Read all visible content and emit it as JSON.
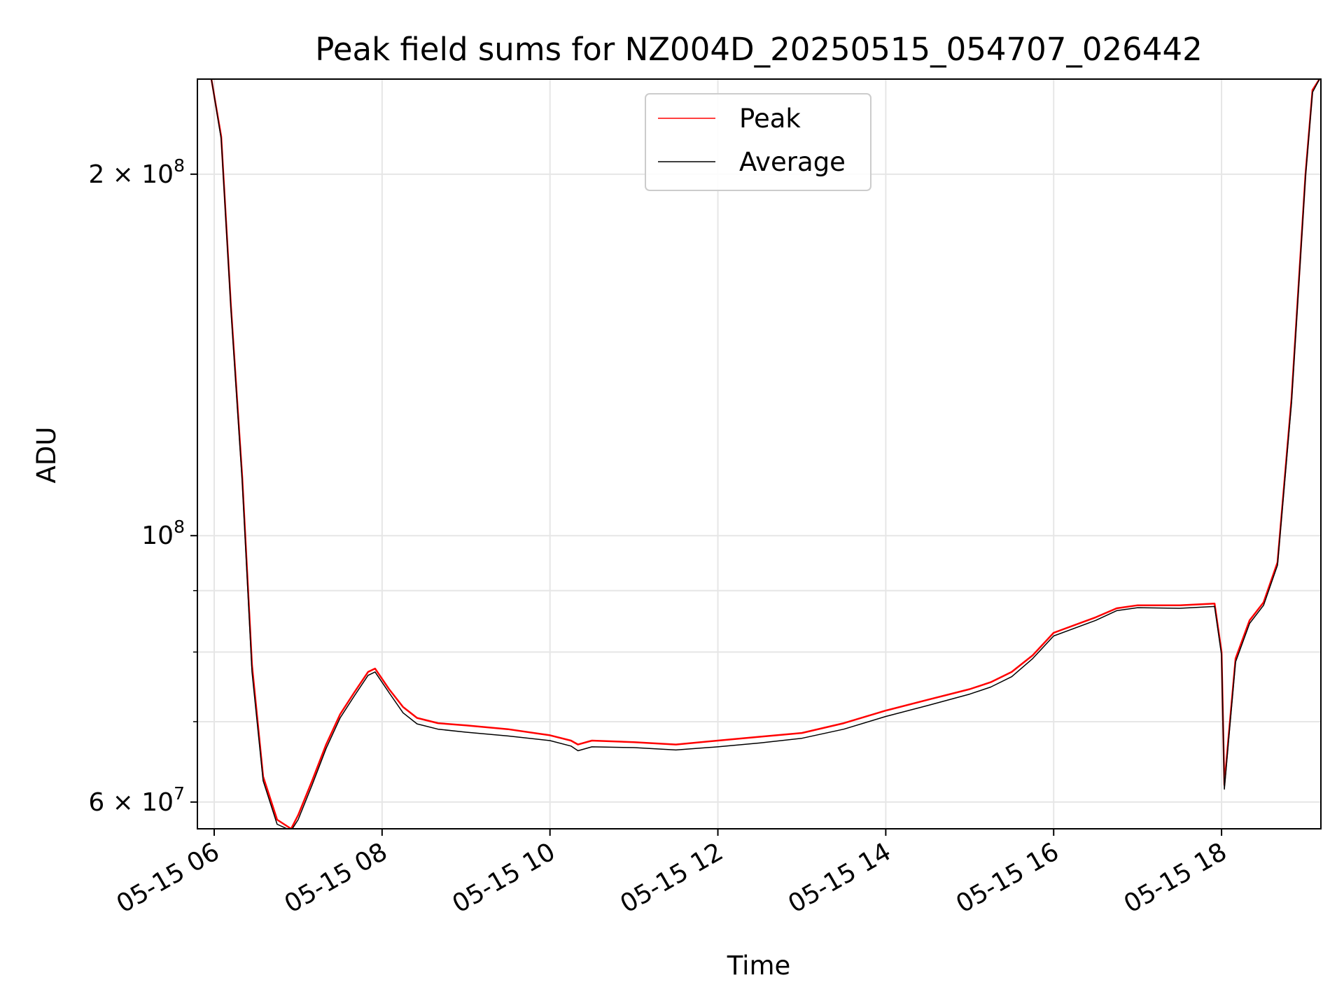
{
  "chart_data": {
    "type": "line",
    "title": "Peak field sums for NZ004D_20250515_054707_026442",
    "xlabel": "Time",
    "ylabel": "ADU",
    "yscale": "log",
    "grid": true,
    "legend_position": "top-center",
    "xlim": [
      "2025-05-15 05:48",
      "2025-05-15 19:11"
    ],
    "ylim": [
      57000000,
      240000000
    ],
    "x_ticks": [
      {
        "value": "2025-05-15 06:00",
        "label": "05-15 06"
      },
      {
        "value": "2025-05-15 08:00",
        "label": "05-15 08"
      },
      {
        "value": "2025-05-15 10:00",
        "label": "05-15 10"
      },
      {
        "value": "2025-05-15 12:00",
        "label": "05-15 12"
      },
      {
        "value": "2025-05-15 14:00",
        "label": "05-15 14"
      },
      {
        "value": "2025-05-15 16:00",
        "label": "05-15 16"
      },
      {
        "value": "2025-05-15 18:00",
        "label": "05-15 18"
      }
    ],
    "y_ticks_major": [
      {
        "value": 60000000,
        "mantissa": "6",
        "base": "10",
        "exp": "7"
      },
      {
        "value": 100000000,
        "mantissa": "",
        "base": "10",
        "exp": "8"
      },
      {
        "value": 200000000,
        "mantissa": "2",
        "base": "10",
        "exp": "8"
      }
    ],
    "y_ticks_minor": [
      70000000,
      80000000,
      90000000
    ],
    "series": [
      {
        "name": "Peak",
        "color": "#ff0000",
        "x": [
          "2025-05-15 05:58",
          "2025-05-15 06:05",
          "2025-05-15 06:12",
          "2025-05-15 06:20",
          "2025-05-15 06:27",
          "2025-05-15 06:35",
          "2025-05-15 06:45",
          "2025-05-15 06:55",
          "2025-05-15 07:00",
          "2025-05-15 07:10",
          "2025-05-15 07:20",
          "2025-05-15 07:30",
          "2025-05-15 07:40",
          "2025-05-15 07:50",
          "2025-05-15 07:55",
          "2025-05-15 08:05",
          "2025-05-15 08:15",
          "2025-05-15 08:25",
          "2025-05-15 08:40",
          "2025-05-15 09:00",
          "2025-05-15 09:30",
          "2025-05-15 10:00",
          "2025-05-15 10:15",
          "2025-05-15 10:20",
          "2025-05-15 10:30",
          "2025-05-15 11:00",
          "2025-05-15 11:30",
          "2025-05-15 12:00",
          "2025-05-15 12:30",
          "2025-05-15 13:00",
          "2025-05-15 13:30",
          "2025-05-15 14:00",
          "2025-05-15 14:30",
          "2025-05-15 15:00",
          "2025-05-15 15:15",
          "2025-05-15 15:30",
          "2025-05-15 15:45",
          "2025-05-15 16:00",
          "2025-05-15 16:30",
          "2025-05-15 16:45",
          "2025-05-15 17:00",
          "2025-05-15 17:30",
          "2025-05-15 17:55",
          "2025-05-15 18:00",
          "2025-05-15 18:02",
          "2025-05-15 18:05",
          "2025-05-15 18:10",
          "2025-05-15 18:20",
          "2025-05-15 18:30",
          "2025-05-15 18:40",
          "2025-05-15 18:50",
          "2025-05-15 19:00",
          "2025-05-15 19:05",
          "2025-05-15 19:10"
        ],
        "y": [
          240000000,
          215000000,
          155000000,
          112000000,
          78000000,
          63000000,
          58000000,
          57000000,
          58500000,
          62500000,
          67000000,
          71000000,
          74000000,
          77000000,
          77500000,
          74500000,
          72000000,
          70500000,
          69800000,
          69500000,
          69000000,
          68200000,
          67500000,
          67000000,
          67500000,
          67300000,
          67000000,
          67500000,
          68000000,
          68500000,
          69800000,
          71500000,
          73000000,
          74500000,
          75500000,
          77000000,
          79500000,
          83000000,
          85500000,
          87000000,
          87500000,
          87500000,
          87800000,
          80000000,
          62000000,
          68000000,
          79000000,
          85000000,
          88000000,
          95000000,
          130000000,
          200000000,
          235000000,
          240000000
        ]
      },
      {
        "name": "Average",
        "color": "#000000",
        "x": [
          "2025-05-15 05:58",
          "2025-05-15 06:05",
          "2025-05-15 06:12",
          "2025-05-15 06:20",
          "2025-05-15 06:27",
          "2025-05-15 06:35",
          "2025-05-15 06:45",
          "2025-05-15 06:55",
          "2025-05-15 07:00",
          "2025-05-15 07:10",
          "2025-05-15 07:20",
          "2025-05-15 07:30",
          "2025-05-15 07:40",
          "2025-05-15 07:50",
          "2025-05-15 07:55",
          "2025-05-15 08:05",
          "2025-05-15 08:15",
          "2025-05-15 08:25",
          "2025-05-15 08:40",
          "2025-05-15 09:00",
          "2025-05-15 09:30",
          "2025-05-15 10:00",
          "2025-05-15 10:15",
          "2025-05-15 10:20",
          "2025-05-15 10:30",
          "2025-05-15 11:00",
          "2025-05-15 11:30",
          "2025-05-15 12:00",
          "2025-05-15 12:30",
          "2025-05-15 13:00",
          "2025-05-15 13:30",
          "2025-05-15 14:00",
          "2025-05-15 14:30",
          "2025-05-15 15:00",
          "2025-05-15 15:15",
          "2025-05-15 15:30",
          "2025-05-15 15:45",
          "2025-05-15 16:00",
          "2025-05-15 16:30",
          "2025-05-15 16:45",
          "2025-05-15 17:00",
          "2025-05-15 17:30",
          "2025-05-15 17:55",
          "2025-05-15 18:00",
          "2025-05-15 18:02",
          "2025-05-15 18:05",
          "2025-05-15 18:10",
          "2025-05-15 18:20",
          "2025-05-15 18:30",
          "2025-05-15 18:40",
          "2025-05-15 18:50",
          "2025-05-15 19:00",
          "2025-05-15 19:05",
          "2025-05-15 19:10"
        ],
        "y": [
          240000000,
          214000000,
          154000000,
          111000000,
          77000000,
          62500000,
          57500000,
          56800000,
          58000000,
          62000000,
          66500000,
          70500000,
          73500000,
          76500000,
          77000000,
          74000000,
          71200000,
          69700000,
          69000000,
          68600000,
          68100000,
          67500000,
          66800000,
          66200000,
          66700000,
          66600000,
          66300000,
          66700000,
          67200000,
          67800000,
          69000000,
          70700000,
          72200000,
          73800000,
          74800000,
          76300000,
          79000000,
          82500000,
          85000000,
          86600000,
          87100000,
          87000000,
          87300000,
          79500000,
          61500000,
          67500000,
          78500000,
          84500000,
          87500000,
          94500000,
          129000000,
          199000000,
          234000000,
          240000000
        ]
      }
    ]
  }
}
